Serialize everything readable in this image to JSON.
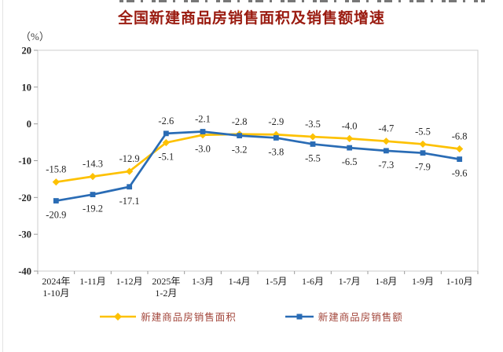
{
  "page": {
    "title": "全国新建商品房销售面积及销售额增速",
    "unit_label": "（%）"
  },
  "colors": {
    "title_text": "#9a1b10",
    "legend_text": "#a2453a",
    "axis_border": "#cdcdcd",
    "tick": "#9b9b9b",
    "label_text": "#262626",
    "series_area": "#fdc101",
    "series_amount": "#2a6cb5"
  },
  "chart_data": {
    "type": "line",
    "title": "全国新建商品房销售面积及销售额增速",
    "ylabel": "（%）",
    "xlabel": "",
    "ylim": [
      -40,
      20
    ],
    "ytick_step": 10,
    "yticks": [
      20,
      10,
      0,
      -10,
      -20,
      -30,
      -40
    ],
    "grid": false,
    "legend_position": "bottom",
    "categories": [
      "2024年|1-10月",
      "1-11月",
      "1-12月",
      "2025年|1-2月",
      "1-3月",
      "1-4月",
      "1-5月",
      "1-6月",
      "1-7月",
      "1-8月",
      "1-9月",
      "1-10月"
    ],
    "series": [
      {
        "name": "新建商品房销售面积",
        "marker": "diamond",
        "color": "#fdc101",
        "values": [
          -15.8,
          -14.3,
          -12.9,
          -5.1,
          -3.0,
          -2.8,
          -2.9,
          -3.5,
          -4.0,
          -4.7,
          -5.5,
          -6.8
        ]
      },
      {
        "name": "新建商品房销售额",
        "marker": "square",
        "color": "#2a6cb5",
        "values": [
          -20.9,
          -19.2,
          -17.1,
          -2.6,
          -2.1,
          -3.2,
          -3.8,
          -5.5,
          -6.5,
          -7.3,
          -7.9,
          -9.6
        ]
      }
    ]
  }
}
